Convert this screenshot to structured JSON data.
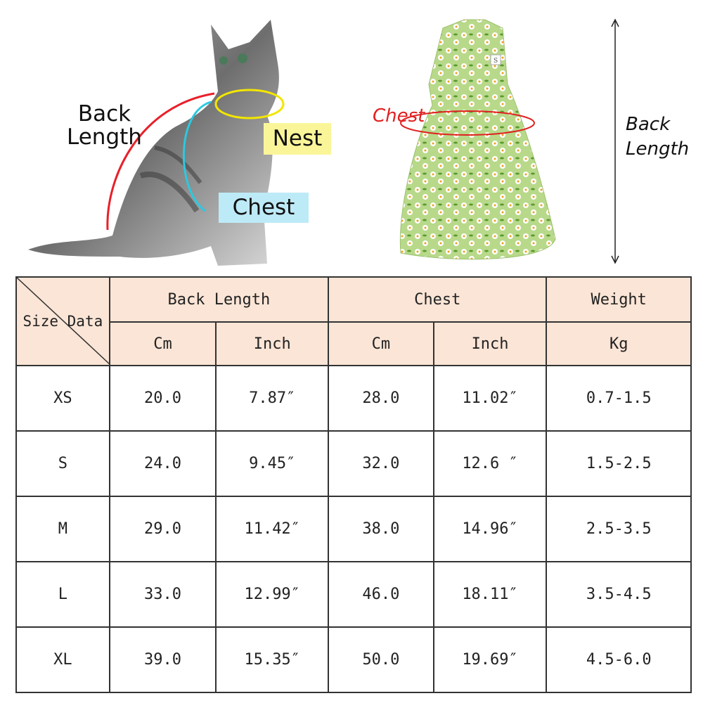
{
  "cat_diagram": {
    "back_length_label": "Back\nLength",
    "nest_label": "Nest",
    "chest_label": "Chest",
    "colors": {
      "back_length": "#e8202a",
      "nest": "#f2e600",
      "chest": "#2cc8e0",
      "nest_box": "#fbf59a",
      "chest_box": "#bdeaf7"
    }
  },
  "dress_diagram": {
    "chest_label": "Chest",
    "back_length_label": "Back\nLength",
    "tag_text": "S",
    "colors": {
      "chest": "#e02020",
      "fabric": "#b8d98a"
    }
  },
  "size_table": {
    "corner_label": "Size Data",
    "groups": [
      {
        "label": "Back Length",
        "units": [
          "Cm",
          "Inch"
        ]
      },
      {
        "label": "Chest",
        "units": [
          "Cm",
          "Inch"
        ]
      },
      {
        "label": "Weight",
        "units": [
          "Kg"
        ]
      }
    ],
    "header_bg": "#fbe5d6",
    "rows": [
      {
        "size": "XS",
        "back_cm": "20.0",
        "back_in": "7.87″",
        "chest_cm": "28.0",
        "chest_in": "11.02″",
        "weight": "0.7-1.5"
      },
      {
        "size": "S",
        "back_cm": "24.0",
        "back_in": "9.45″",
        "chest_cm": "32.0",
        "chest_in": "12.6 ″",
        "weight": "1.5-2.5"
      },
      {
        "size": "M",
        "back_cm": "29.0",
        "back_in": "11.42″",
        "chest_cm": "38.0",
        "chest_in": "14.96″",
        "weight": "2.5-3.5"
      },
      {
        "size": "L",
        "back_cm": "33.0",
        "back_in": "12.99″",
        "chest_cm": "46.0",
        "chest_in": "18.11″",
        "weight": "3.5-4.5"
      },
      {
        "size": "XL",
        "back_cm": "39.0",
        "back_in": "15.35″",
        "chest_cm": "50.0",
        "chest_in": "19.69″",
        "weight": "4.5-6.0"
      }
    ]
  }
}
